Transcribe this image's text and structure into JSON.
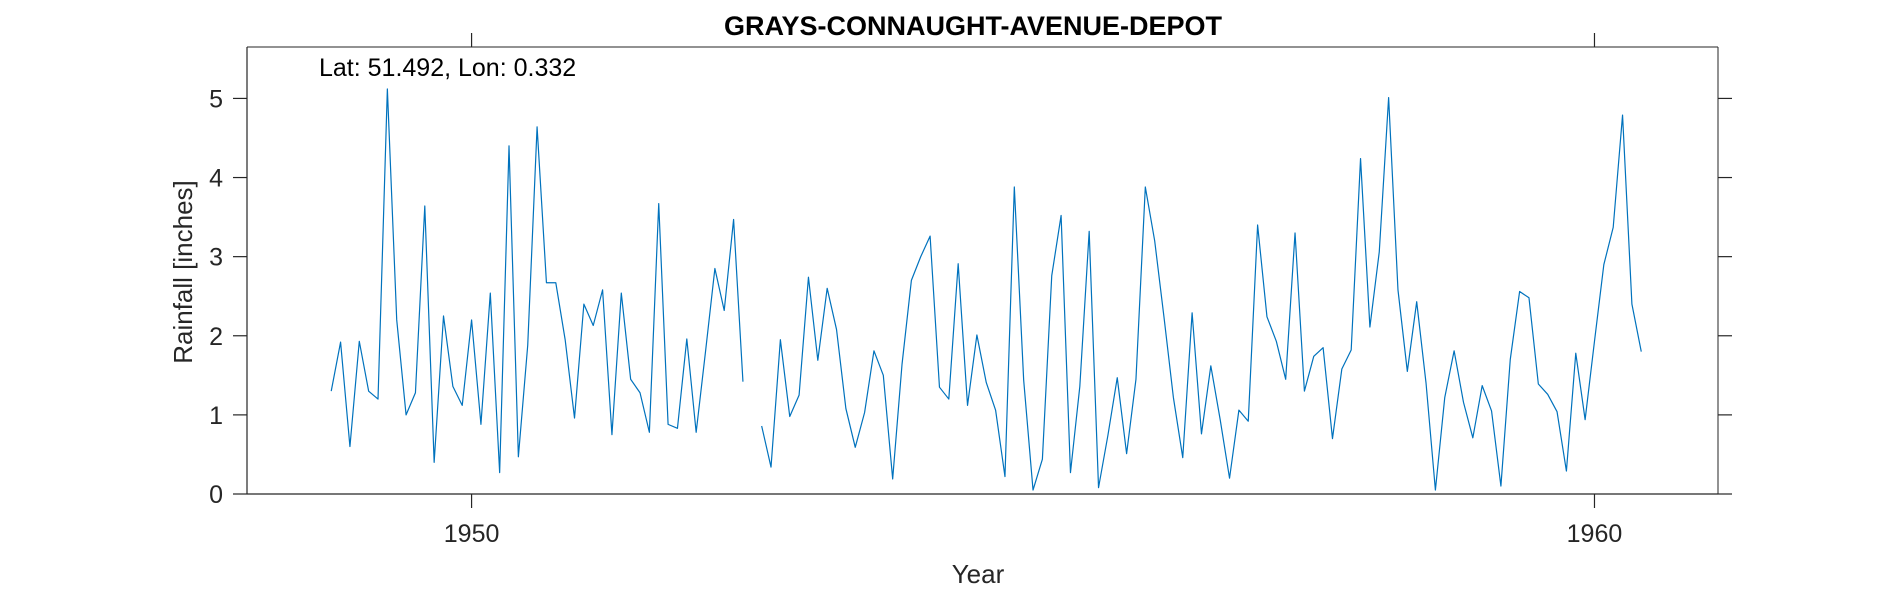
{
  "chart_data": {
    "type": "line",
    "title": "GRAYS-CONNAUGHT-AVENUE-DEPOT",
    "annotation": "Lat: 51.492, Lon: 0.332",
    "xlabel": "Year",
    "ylabel": "Rainfall [inches]",
    "xlim": [
      1948.0,
      1961.1
    ],
    "ylim": [
      0,
      5.65
    ],
    "xticks": [
      1950,
      1960
    ],
    "xtick_labels": [
      "1950",
      "1960"
    ],
    "yticks": [
      0,
      1,
      2,
      3,
      4,
      5
    ],
    "ytick_labels": [
      "0",
      "1",
      "2",
      "3",
      "4",
      "5"
    ],
    "grid": false,
    "colors": {
      "line": "#0072BD",
      "axis": "#262626"
    },
    "series": [
      {
        "start_year": 1948,
        "start_month": 10,
        "values": [
          1.3,
          1.92,
          0.6,
          1.93,
          1.3,
          1.2,
          5.12,
          2.2,
          1.0,
          1.28,
          3.64,
          0.4,
          2.25,
          1.36,
          1.12,
          2.2,
          0.88,
          2.54,
          0.27,
          4.4,
          0.47,
          1.88,
          4.64,
          2.67,
          2.67,
          1.95,
          0.96,
          2.4,
          2.13,
          2.58,
          0.75,
          2.54,
          1.45,
          1.28,
          0.78,
          3.67,
          0.88,
          0.83,
          1.96,
          0.78,
          1.8,
          2.85,
          2.32,
          3.47,
          1.42,
          null,
          0.86,
          0.34,
          1.95,
          0.98,
          1.25,
          2.74,
          1.69,
          2.6,
          2.08,
          1.08,
          0.59,
          1.03,
          1.81,
          1.5,
          0.19,
          1.64,
          2.7,
          3.0,
          3.26,
          1.35,
          1.2,
          2.91,
          1.12,
          2.01,
          1.41,
          1.06,
          0.22,
          3.88,
          1.44,
          0.05,
          0.44,
          2.76,
          3.52,
          0.27,
          1.36,
          3.32,
          0.08,
          0.74,
          1.47,
          0.51,
          1.45,
          3.88,
          3.2,
          2.23,
          1.22,
          0.46,
          2.29,
          0.76,
          1.62,
          0.94,
          0.2,
          1.06,
          0.92,
          3.4,
          2.24,
          1.93,
          1.45,
          3.3,
          1.3,
          1.74,
          1.85,
          0.7,
          1.58,
          1.82,
          4.24,
          2.11,
          3.06,
          5.01,
          2.58,
          1.55,
          2.43,
          1.4,
          0.05,
          1.22,
          1.81,
          1.16,
          0.71,
          1.37,
          1.05,
          0.1,
          1.7,
          2.56,
          2.48,
          1.39,
          1.26,
          1.04,
          0.29,
          1.78,
          0.94,
          1.93,
          2.9,
          3.37,
          4.79,
          2.4,
          1.8
        ]
      }
    ]
  }
}
